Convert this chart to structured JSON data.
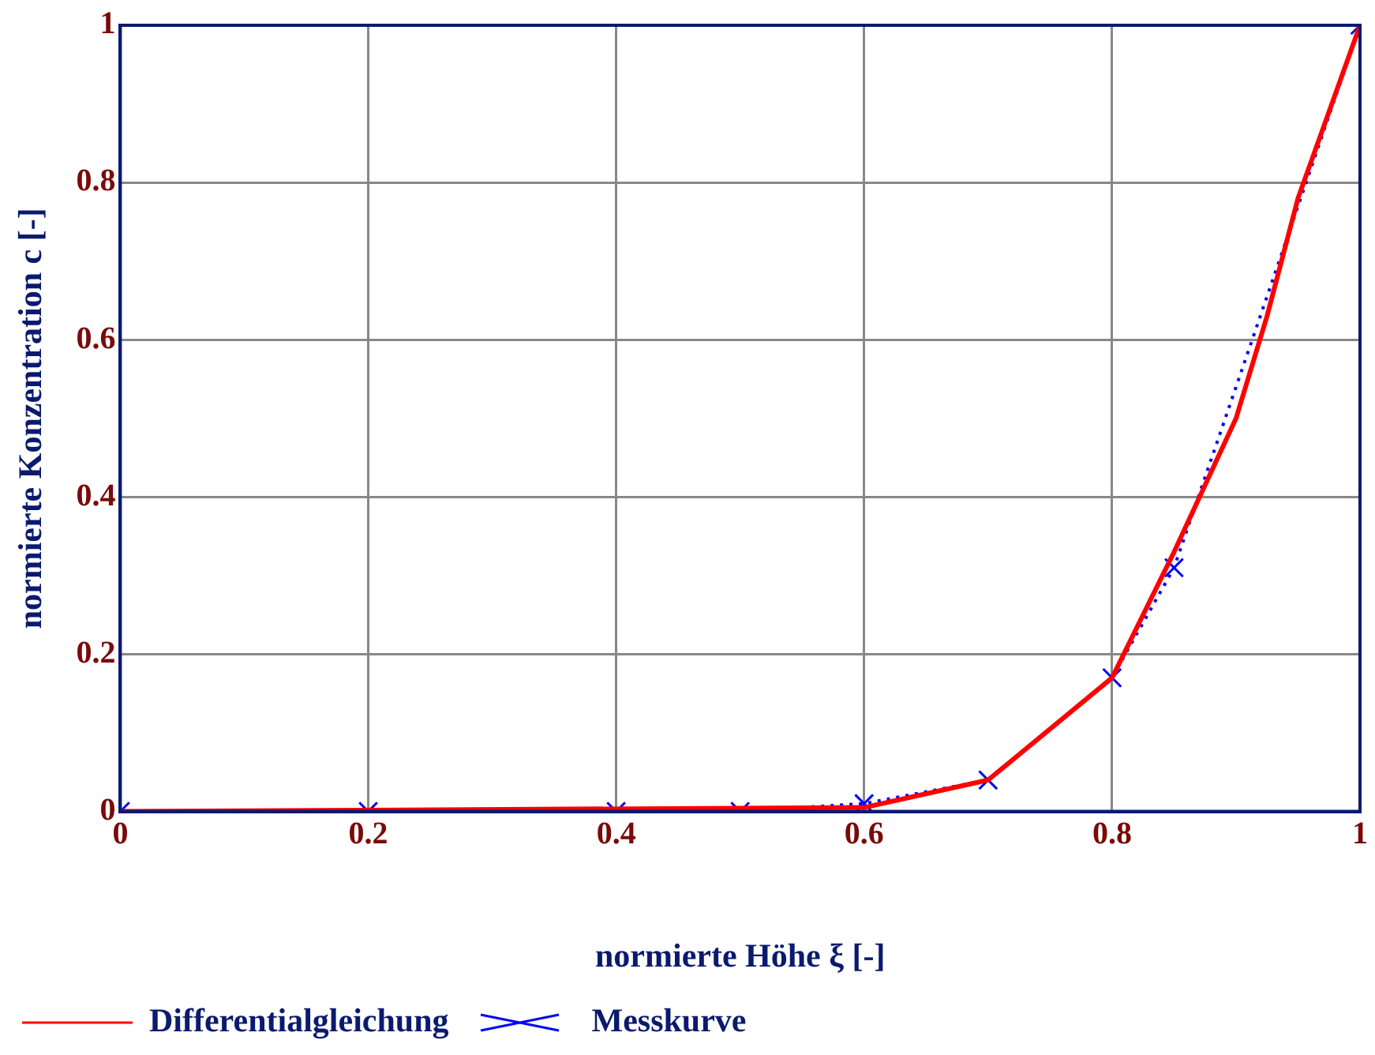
{
  "chart_data": {
    "type": "line",
    "xlabel": "normierte Höhe ξ [-]",
    "ylabel": "normierte Konzentration c [-]",
    "xlim": [
      0,
      1
    ],
    "ylim": [
      0,
      1
    ],
    "xticks": [
      0,
      0.2,
      0.4,
      0.6,
      0.8,
      1
    ],
    "yticks": [
      0,
      0.2,
      0.4,
      0.6,
      0.8,
      1
    ],
    "grid": true,
    "legend": "bottom left",
    "series": [
      {
        "name": "Differentialgleichung",
        "color": "#ff0000",
        "x": [
          0,
          0.6,
          0.7,
          0.8,
          0.85,
          0.9,
          0.925,
          0.95,
          0.975,
          1
        ],
        "values": [
          0,
          0.005,
          0.04,
          0.17,
          0.33,
          0.5,
          0.63,
          0.78,
          0.89,
          1
        ],
        "marker": "none",
        "line_style": "solid"
      },
      {
        "name": "Messkurve",
        "color": "#0000ff",
        "x": [
          0,
          0.2,
          0.4,
          0.5,
          0.6,
          0.7,
          0.8,
          0.85,
          1
        ],
        "values": [
          0,
          0,
          0,
          0,
          0.01,
          0.04,
          0.17,
          0.31,
          1
        ],
        "marker": "cross",
        "line_style": "dotted"
      }
    ]
  }
}
